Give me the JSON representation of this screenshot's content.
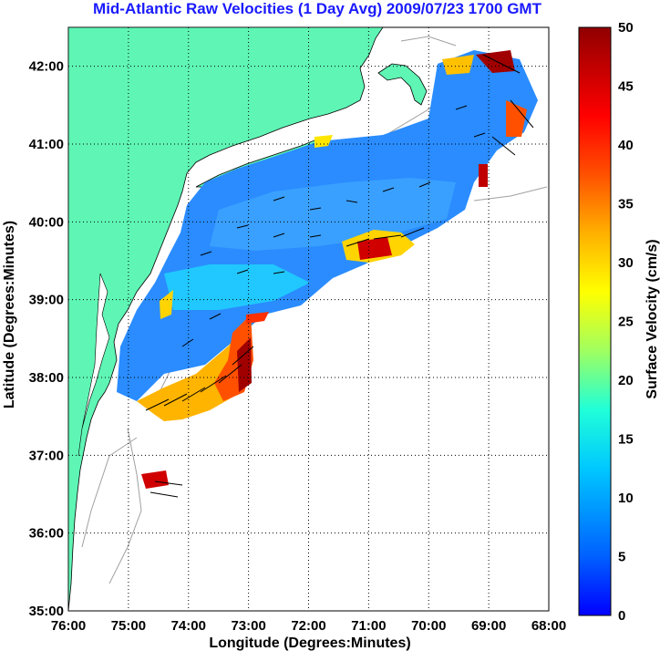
{
  "title": "Mid-Atlantic Raw Velocities (1 Day Avg) 2009/07/23 1700 GMT",
  "map": {
    "xlabel": "Longitude (Degrees:Minutes)",
    "ylabel": "Latitude (Degrees:Minutes)",
    "lon_range": [
      -76,
      -68
    ],
    "lat_range": [
      35,
      42.5
    ],
    "x_ticks": [
      {
        "lon": -76,
        "label": "76:00"
      },
      {
        "lon": -75,
        "label": "75:00"
      },
      {
        "lon": -74,
        "label": "74:00"
      },
      {
        "lon": -73,
        "label": "73:00"
      },
      {
        "lon": -72,
        "label": "72:00"
      },
      {
        "lon": -71,
        "label": "71:00"
      },
      {
        "lon": -70,
        "label": "70:00"
      },
      {
        "lon": -69,
        "label": "69:00"
      },
      {
        "lon": -68,
        "label": "68:00"
      }
    ],
    "y_ticks": [
      {
        "lat": 35,
        "label": "35:00"
      },
      {
        "lat": 36,
        "label": "36:00"
      },
      {
        "lat": 37,
        "label": "37:00"
      },
      {
        "lat": 38,
        "label": "38:00"
      },
      {
        "lat": 39,
        "label": "39:00"
      },
      {
        "lat": 40,
        "label": "40:00"
      },
      {
        "lat": 41,
        "label": "41:00"
      },
      {
        "lat": 42,
        "label": "42:00"
      }
    ],
    "grid": "dotted",
    "land_color": "#5ff5b5",
    "vector_color": "#000000",
    "bathymetry_color": "#a0a0a0"
  },
  "colorbar": {
    "label": "Surface Velocity (cm/s)",
    "range": [
      0,
      50
    ],
    "ticks": [
      {
        "value": 0,
        "label": "0"
      },
      {
        "value": 5,
        "label": "5"
      },
      {
        "value": 10,
        "label": "10"
      },
      {
        "value": 15,
        "label": "15"
      },
      {
        "value": 20,
        "label": "20"
      },
      {
        "value": 25,
        "label": "25"
      },
      {
        "value": 30,
        "label": "30"
      },
      {
        "value": 35,
        "label": "35"
      },
      {
        "value": 40,
        "label": "40"
      },
      {
        "value": 45,
        "label": "45"
      },
      {
        "value": 50,
        "label": "50"
      }
    ],
    "colormap": "jet"
  }
}
